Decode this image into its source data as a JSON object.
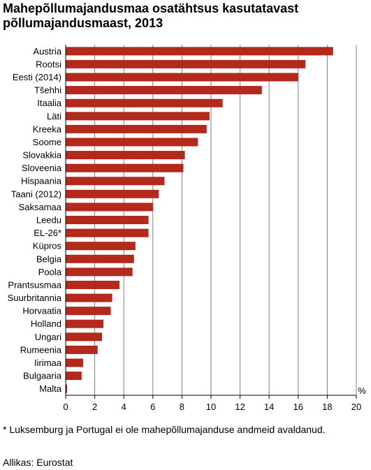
{
  "title": "Mahepõllumajandusmaa osatähtsus kasutatavast põllumajandusmaast, 2013",
  "footnote": "* Luksemburg ja Portugal ei ole mahepõllumajanduse andmeid avaldanud.",
  "source": "Allikas: Eurostat",
  "colors": {
    "bar": "#b3291c",
    "grid": "#7f7f7f",
    "axis": "#000000"
  },
  "chart_data": {
    "type": "bar",
    "orientation": "horizontal",
    "unit_label": "%",
    "categories": [
      "Austria",
      "Rootsi",
      "Eesti (2014)",
      "Tšehhi",
      "Itaalia",
      "Läti",
      "Kreeka",
      "Soome",
      "Slovakkia",
      "Sloveenia",
      "Hispaania",
      "Taani (2012)",
      "Saksamaa",
      "Leedu",
      "EL-26*",
      "Küpros",
      "Belgia",
      "Poola",
      "Prantsusmaa",
      "Suurbritannia",
      "Horvaatia",
      "Holland",
      "Ungari",
      "Rumeenia",
      "Iirimaa",
      "Bulgaaria",
      "Malta"
    ],
    "values": [
      18.4,
      16.5,
      16.0,
      13.5,
      10.8,
      9.9,
      9.7,
      9.1,
      8.2,
      8.1,
      6.8,
      6.4,
      6.0,
      5.7,
      5.7,
      4.8,
      4.7,
      4.6,
      3.7,
      3.2,
      3.1,
      2.6,
      2.5,
      2.2,
      1.2,
      1.1,
      0.1
    ],
    "xlim": [
      0,
      20
    ],
    "ticks": [
      0,
      2,
      4,
      6,
      8,
      10,
      12,
      14,
      16,
      18,
      20
    ],
    "grid": true
  }
}
